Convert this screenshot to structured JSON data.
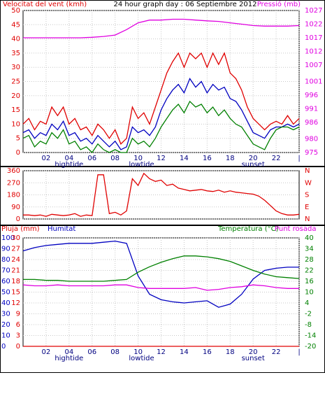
{
  "chart_data": [
    {
      "type": "line",
      "title": "24 hour graph day : 06 Septiembre 2012",
      "xlim": [
        0,
        24
      ],
      "xticks": [
        {
          "value": 2,
          "label": "02"
        },
        {
          "value": 4,
          "label": "04"
        },
        {
          "value": 6,
          "label": "06"
        },
        {
          "value": 8,
          "label": "08"
        },
        {
          "value": 10,
          "label": "10"
        },
        {
          "value": 12,
          "label": "12"
        },
        {
          "value": 14,
          "label": "14"
        },
        {
          "value": 16,
          "label": "16"
        },
        {
          "value": 18,
          "label": "18"
        },
        {
          "value": 20,
          "label": "20"
        },
        {
          "value": 22,
          "label": "22"
        },
        {
          "value": 24,
          "label": "|"
        }
      ],
      "events": [
        {
          "label": "hightide",
          "x": 4
        },
        {
          "label": "lowtide",
          "x": 10.3
        },
        {
          "label": "sunset",
          "x": 20
        }
      ],
      "grid": true,
      "axes": [
        {
          "label": "Velocitat del vent (kmh)",
          "side": "left",
          "color": "#e00000",
          "lim": [
            0,
            50
          ],
          "ticks": [
            0,
            5,
            10,
            15,
            20,
            25,
            30,
            35,
            40,
            45,
            50
          ]
        },
        {
          "label": "Pressió (mb)",
          "side": "right",
          "color": "#e000e0",
          "lim": [
            975,
            1027
          ],
          "ticks": [
            975,
            980,
            986,
            991,
            996,
            1001,
            1007,
            1012,
            1017,
            1022,
            1027
          ]
        }
      ],
      "series": [
        {
          "color": "#e00000",
          "axis": 0,
          "x": [
            0,
            0.5,
            1,
            1.5,
            2,
            2.5,
            3,
            3.5,
            4,
            4.5,
            5,
            5.5,
            6,
            6.5,
            7,
            7.5,
            8,
            8.5,
            9,
            9.5,
            10,
            10.5,
            11,
            11.5,
            12,
            12.5,
            13,
            13.5,
            14,
            14.5,
            15,
            15.5,
            16,
            16.5,
            17,
            17.5,
            18,
            18.5,
            19,
            19.5,
            20,
            20.5,
            21,
            21.5,
            22,
            22.5,
            23,
            23.5,
            24
          ],
          "values": [
            10,
            12,
            8,
            11,
            10,
            16,
            13,
            16,
            10,
            12,
            8,
            9,
            6,
            10,
            8,
            5,
            8,
            3,
            5,
            16,
            12,
            14,
            10,
            16,
            22,
            28,
            32,
            35,
            30,
            35,
            33,
            35,
            30,
            35,
            31,
            35,
            28,
            26,
            22,
            16,
            12,
            10,
            8,
            10,
            11,
            10,
            13,
            10,
            12
          ]
        },
        {
          "color": "#0000c0",
          "axis": 0,
          "x": [
            0,
            0.5,
            1,
            1.5,
            2,
            2.5,
            3,
            3.5,
            4,
            4.5,
            5,
            5.5,
            6,
            6.5,
            7,
            7.5,
            8,
            8.5,
            9,
            9.5,
            10,
            10.5,
            11,
            11.5,
            12,
            12.5,
            13,
            13.5,
            14,
            14.5,
            15,
            15.5,
            16,
            16.5,
            17,
            17.5,
            18,
            18.5,
            19,
            19.5,
            20,
            20.5,
            21,
            21.5,
            22,
            22.5,
            23,
            23.5,
            24
          ],
          "values": [
            7,
            8,
            5,
            7,
            6,
            10,
            8,
            11,
            6,
            7,
            4,
            5,
            3,
            6,
            4,
            2,
            4,
            1,
            2,
            9,
            7,
            8,
            6,
            9,
            15,
            19,
            22,
            24,
            21,
            26,
            23,
            25,
            21,
            24,
            22,
            23,
            19,
            18,
            15,
            11,
            7,
            6,
            5,
            8,
            9,
            9,
            10,
            9,
            10
          ]
        },
        {
          "color": "#008000",
          "axis": 0,
          "x": [
            0,
            0.5,
            1,
            1.5,
            2,
            2.5,
            3,
            3.5,
            4,
            4.5,
            5,
            5.5,
            6,
            6.5,
            7,
            7.5,
            8,
            8.5,
            9,
            9.5,
            10,
            10.5,
            11,
            11.5,
            12,
            12.5,
            13,
            13.5,
            14,
            14.5,
            15,
            15.5,
            16,
            16.5,
            17,
            17.5,
            18,
            18.5,
            19,
            19.5,
            20,
            20.5,
            21,
            21.5,
            22,
            22.5,
            23,
            23.5,
            24
          ],
          "values": [
            5,
            6,
            2,
            4,
            3,
            7,
            5,
            8,
            3,
            4,
            1,
            2,
            0,
            3,
            1,
            0,
            1,
            0,
            0,
            5,
            3,
            4,
            2,
            5,
            9,
            12,
            15,
            17,
            14,
            18,
            16,
            17,
            14,
            16,
            13,
            15,
            12,
            10,
            9,
            6,
            3,
            2,
            1,
            5,
            8,
            9,
            9,
            8,
            9
          ]
        },
        {
          "color": "#e000e0",
          "axis": 1,
          "x": [
            0,
            1,
            2,
            3,
            4,
            5,
            6,
            7,
            8,
            9,
            10,
            11,
            12,
            13,
            14,
            15,
            16,
            17,
            18,
            19,
            20,
            21,
            22,
            23,
            24
          ],
          "values": [
            1017,
            1017,
            1017,
            1017,
            1017,
            1017,
            1017.2,
            1017.5,
            1018,
            1020,
            1022.5,
            1023.5,
            1023.5,
            1023.8,
            1023.8,
            1023.5,
            1023.2,
            1023,
            1022.5,
            1022,
            1021.5,
            1021.3,
            1021.3,
            1021.3,
            1021.5
          ]
        }
      ]
    },
    {
      "type": "line",
      "xlim": [
        0,
        24
      ],
      "xticks": [
        {
          "value": 2,
          "label": ""
        },
        {
          "value": 4,
          "label": ""
        }
      ],
      "grid": true,
      "axes": [
        {
          "side": "left",
          "color": "#e00000",
          "lim": [
            0,
            360
          ],
          "ticks": [
            0,
            90,
            180,
            270,
            360
          ]
        },
        {
          "side": "right",
          "color": "#e00000",
          "lim": [
            0,
            360
          ],
          "ticks": [
            {
              "value": 360,
              "label": "N"
            },
            {
              "value": 270,
              "label": "W"
            },
            {
              "value": 180,
              "label": "S"
            },
            {
              "value": 90,
              "label": "E"
            },
            {
              "value": 0,
              "label": "N"
            }
          ]
        }
      ],
      "series": [
        {
          "color": "#e00000",
          "axis": 0,
          "x": [
            0,
            0.5,
            1,
            1.5,
            2,
            2.5,
            3,
            3.5,
            4,
            4.5,
            5,
            5.5,
            6,
            6.5,
            7,
            7.5,
            8,
            8.5,
            9,
            9.5,
            10,
            10.5,
            11,
            11.5,
            12,
            12.5,
            13,
            13.5,
            14,
            14.5,
            15,
            15.5,
            16,
            16.5,
            17,
            17.5,
            18,
            18.5,
            19,
            19.5,
            20,
            20.5,
            21,
            21.5,
            22,
            22.5,
            23,
            23.5,
            24
          ],
          "values": [
            30,
            30,
            25,
            30,
            20,
            35,
            30,
            25,
            30,
            40,
            20,
            30,
            25,
            330,
            330,
            40,
            50,
            30,
            60,
            300,
            250,
            340,
            300,
            280,
            290,
            250,
            260,
            230,
            220,
            210,
            215,
            220,
            210,
            205,
            215,
            200,
            210,
            200,
            195,
            190,
            185,
            170,
            140,
            100,
            60,
            40,
            30,
            30,
            35
          ]
        }
      ]
    },
    {
      "type": "line",
      "xlim": [
        0,
        24
      ],
      "xticks": [
        {
          "value": 2,
          "label": "02"
        },
        {
          "value": 4,
          "label": "04"
        },
        {
          "value": 6,
          "label": "06"
        },
        {
          "value": 8,
          "label": "08"
        },
        {
          "value": 10,
          "label": "10"
        },
        {
          "value": 12,
          "label": "12"
        },
        {
          "value": 14,
          "label": "14"
        },
        {
          "value": 16,
          "label": "16"
        },
        {
          "value": 18,
          "label": "18"
        },
        {
          "value": 20,
          "label": "20"
        },
        {
          "value": 22,
          "label": "22"
        },
        {
          "value": 24,
          "label": "|"
        }
      ],
      "events": [
        {
          "label": "hightide",
          "x": 4
        },
        {
          "label": "lowtide",
          "x": 10.3
        },
        {
          "label": "sunset",
          "x": 20
        }
      ],
      "grid": true,
      "axes": [
        {
          "side": "left-outer",
          "color": "#0000c0",
          "lim": [
            0,
            100
          ],
          "ticks": [
            0,
            10,
            20,
            30,
            40,
            50,
            60,
            70,
            80,
            90,
            100
          ]
        },
        {
          "side": "left",
          "color": "#e00000",
          "lim": [
            0,
            30
          ],
          "ticks": [
            0,
            3,
            6,
            9,
            12,
            15,
            18,
            21,
            24,
            27,
            30
          ]
        },
        {
          "side": "right",
          "color": "#008000",
          "lim": [
            -20,
            40
          ],
          "ticks": [
            -20,
            -14,
            -8,
            -2,
            4,
            10,
            16,
            22,
            28,
            34,
            40
          ]
        }
      ],
      "series": [
        {
          "name": "Pluja (mm)",
          "color": "#e00000",
          "axis": 1,
          "x": [
            0,
            1,
            2,
            3,
            4,
            5,
            6,
            7,
            8,
            9,
            10,
            11,
            12,
            13,
            14,
            15,
            16,
            17,
            18,
            19,
            20,
            21,
            22,
            23,
            24
          ],
          "values": [
            0,
            0,
            0,
            0,
            0,
            0,
            0,
            0,
            0,
            0,
            0,
            0,
            0,
            0,
            0,
            0,
            0,
            0,
            0,
            0,
            0,
            0,
            0,
            0,
            0
          ]
        },
        {
          "name": "Humitat",
          "color": "#0000c0",
          "axis": 0,
          "x": [
            0,
            1,
            2,
            3,
            4,
            5,
            6,
            7,
            8,
            9,
            10,
            11,
            12,
            13,
            14,
            15,
            16,
            17,
            18,
            19,
            20,
            21,
            22,
            23,
            24
          ],
          "values": [
            88,
            91,
            93,
            94,
            95,
            95,
            95,
            96,
            97,
            95,
            65,
            48,
            43,
            41,
            40,
            41,
            42,
            36,
            39,
            48,
            62,
            70,
            72,
            73,
            73
          ]
        },
        {
          "name": "Temperatura (°C)",
          "color": "#008000",
          "axis": 2,
          "x": [
            0,
            1,
            2,
            3,
            4,
            5,
            6,
            7,
            8,
            9,
            10,
            11,
            12,
            13,
            14,
            15,
            16,
            17,
            18,
            19,
            20,
            21,
            22,
            23,
            24
          ],
          "values": [
            17,
            17,
            16.5,
            16.5,
            16,
            16,
            16,
            16,
            16.5,
            17,
            21,
            24,
            26.5,
            28.5,
            30,
            30,
            29.5,
            28.5,
            27,
            24.5,
            22,
            20,
            18.5,
            18,
            17.5
          ]
        },
        {
          "name": "Punt rosada",
          "color": "#e000e0",
          "axis": 2,
          "x": [
            0,
            1,
            2,
            3,
            4,
            5,
            6,
            7,
            8,
            9,
            10,
            11,
            12,
            13,
            14,
            15,
            16,
            17,
            18,
            19,
            20,
            21,
            22,
            23,
            24
          ],
          "values": [
            14,
            13.5,
            13.5,
            14,
            13.5,
            13.5,
            13.5,
            13.5,
            14,
            14,
            12.5,
            12,
            12,
            12,
            12,
            12.5,
            11,
            11.5,
            12.5,
            13,
            14,
            13.5,
            12.5,
            12,
            12
          ]
        }
      ]
    }
  ]
}
